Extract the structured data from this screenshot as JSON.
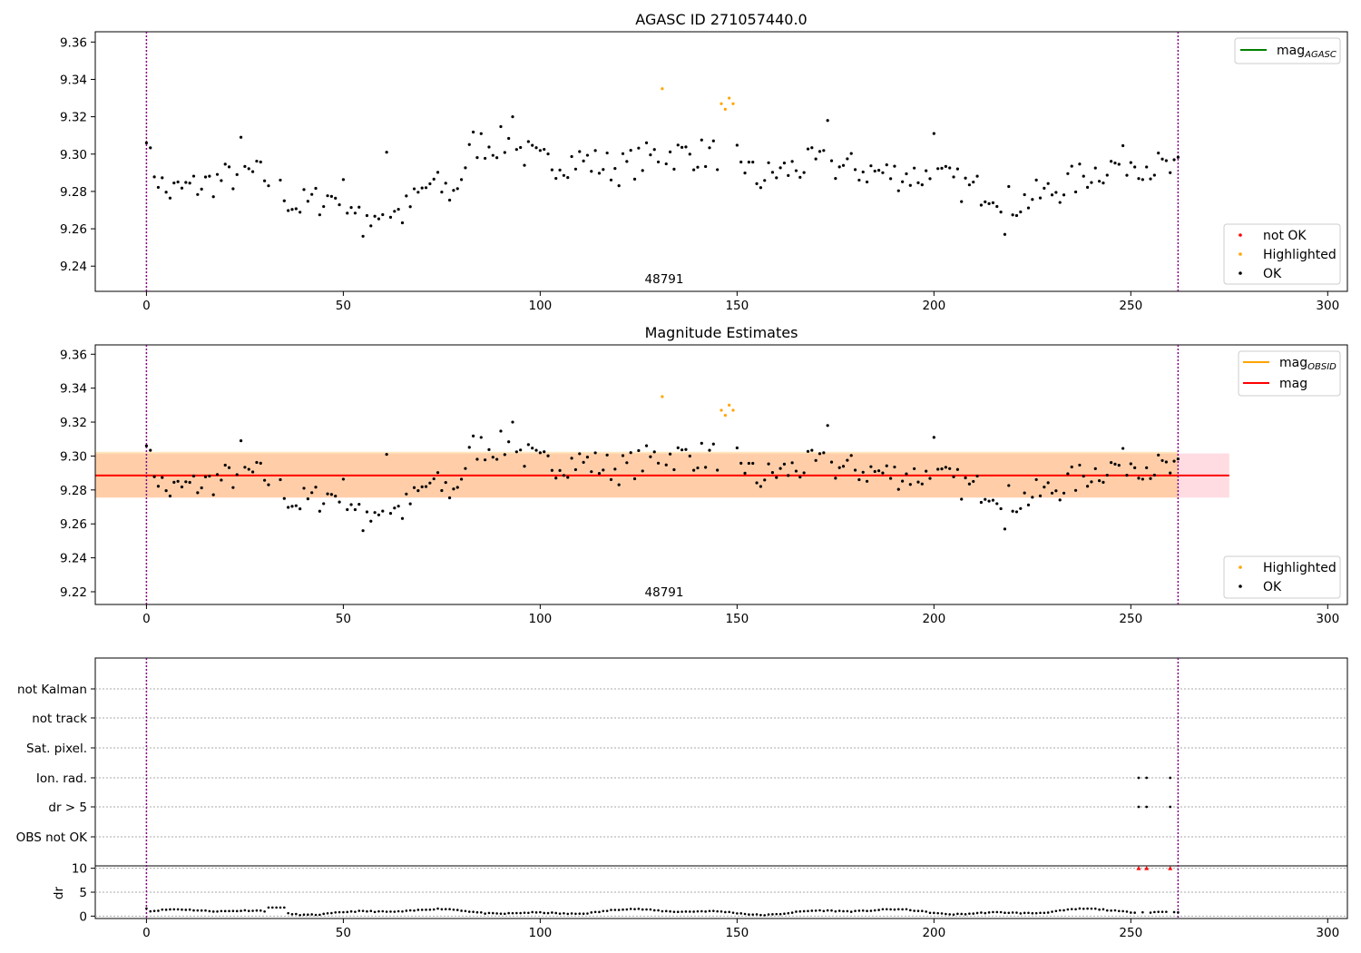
{
  "chart_data": [
    {
      "type": "scatter",
      "title": "AGASC ID 271057440.0",
      "xlabel": "",
      "ylabel": "",
      "xlim": [
        -13,
        305
      ],
      "ylim": [
        9.2265,
        9.3655
      ],
      "x_ticks": [
        "0",
        "50",
        "100",
        "150",
        "200",
        "250",
        "300"
      ],
      "y_ticks": [
        "9.24",
        "9.26",
        "9.28",
        "9.30",
        "9.32",
        "9.34",
        "9.36"
      ],
      "obsid_label": "48791",
      "obs_boundaries": [
        0,
        262
      ],
      "legend_lines": [
        {
          "label": "mag",
          "sub": "AGASC",
          "color": "#008000"
        }
      ],
      "legend_points": [
        {
          "label": "not OK",
          "color": "#ff0000"
        },
        {
          "label": "Highlighted",
          "color": "#ffa500"
        },
        {
          "label": "OK",
          "color": "#000000"
        }
      ],
      "legend_placement": [
        "top-right",
        "bottom-right"
      ]
    },
    {
      "type": "scatter",
      "title": "Magnitude Estimates",
      "xlabel": "",
      "ylabel": "",
      "xlim": [
        -13,
        305
      ],
      "ylim": [
        9.2125,
        9.3655
      ],
      "x_ticks": [
        "0",
        "50",
        "100",
        "150",
        "200",
        "250",
        "300"
      ],
      "y_ticks": [
        "9.22",
        "9.24",
        "9.26",
        "9.28",
        "9.30",
        "9.32",
        "9.34",
        "9.36"
      ],
      "obsid_label": "48791",
      "obs_boundaries": [
        0,
        262
      ],
      "mag_line": 9.2885,
      "mag_band": [
        9.2755,
        9.3015
      ],
      "mag_obsid_band": [
        9.2755,
        9.3025
      ],
      "band_x_extent": [
        -13,
        275
      ],
      "legend_lines": [
        {
          "label": "mag",
          "sub": "OBSID",
          "color": "#ffa500"
        },
        {
          "label": "mag",
          "sub": "",
          "color": "#ff0000"
        }
      ],
      "legend_points": [
        {
          "label": "Highlighted",
          "color": "#ffa500"
        },
        {
          "label": "OK",
          "color": "#000000"
        }
      ],
      "legend_placement": [
        "top-right",
        "bottom-right"
      ]
    },
    {
      "type": "scatter",
      "title": "",
      "flag_labels": [
        "not Kalman",
        "not track",
        "Sat. pixel.",
        "Ion. rad.",
        "dr > 5",
        "OBS not OK"
      ],
      "flag_points": {
        "Ion. rad.": [
          252,
          254,
          260
        ],
        "dr > 5": [
          252,
          254,
          260
        ]
      },
      "dr_ticks": [
        "10",
        "5",
        "0"
      ],
      "dr_label": "dr",
      "dr_ylim": [
        -0.5,
        10.5
      ],
      "dr_flagged": [
        252,
        254,
        260
      ],
      "x_ticks": [
        "0",
        "50",
        "100",
        "150",
        "200",
        "250",
        "300"
      ],
      "xlim": [
        -13,
        305
      ],
      "obs_boundaries": [
        0,
        262
      ]
    }
  ]
}
